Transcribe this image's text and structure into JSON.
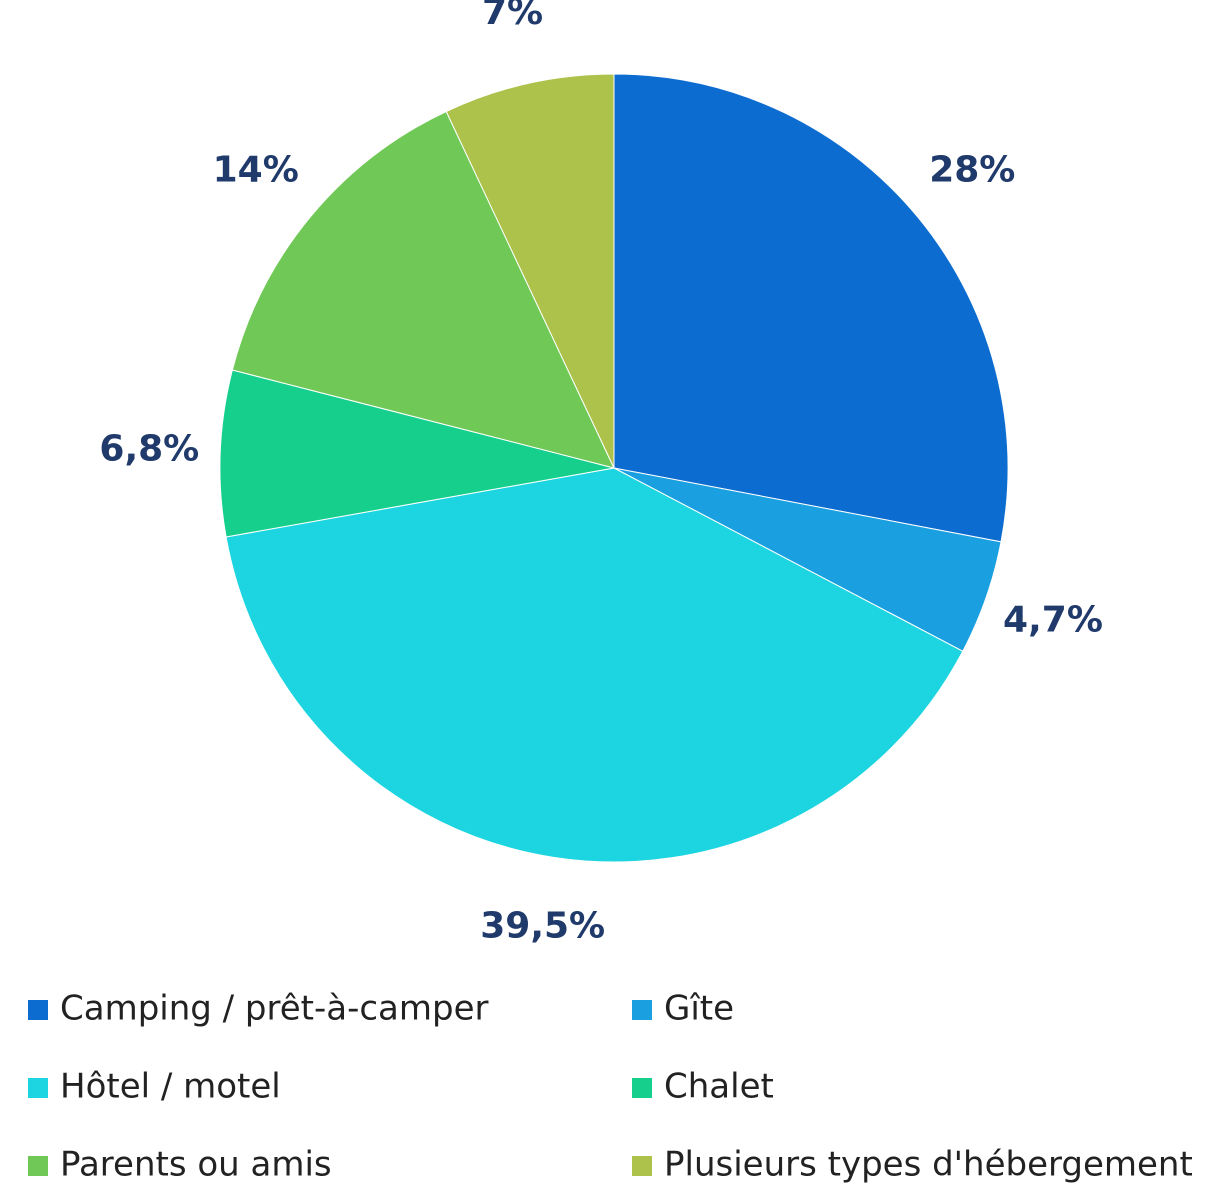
{
  "chart_data": {
    "type": "pie",
    "categories": [
      "Camping / prêt-à-camper",
      "Gîte",
      "Hôtel / motel",
      "Chalet",
      "Parents ou amis",
      "Plusieurs types d'hébergement"
    ],
    "values": [
      28,
      4.7,
      39.5,
      6.8,
      14,
      7
    ],
    "value_labels": [
      "28%",
      "4,7%",
      "39,5%",
      "6,8%",
      "14%",
      "7%"
    ],
    "colors": [
      "#0d6ccf",
      "#1a9fe0",
      "#1dd5e0",
      "#16cf8c",
      "#70c957",
      "#adc24a"
    ],
    "legend": "bottom"
  }
}
